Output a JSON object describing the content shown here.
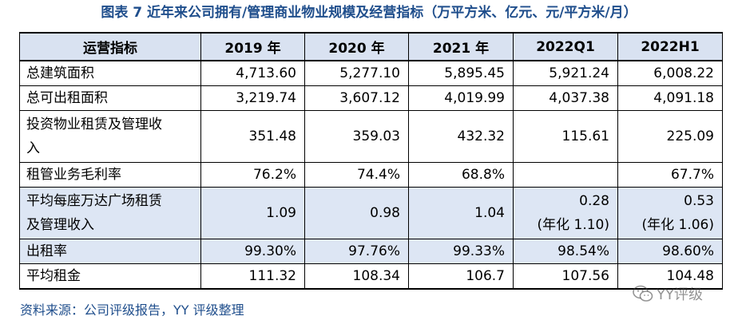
{
  "title": "图表 7 近年来公司拥有/管理商业物业规模及经营指标（万平方米、亿元、元/平方米/月）",
  "table": {
    "headers": [
      "运营指标",
      "2019 年",
      "2020 年",
      "2021 年",
      "2022Q1",
      "2022H1"
    ],
    "rows": [
      {
        "label": "总建筑面积",
        "cells": [
          "4,713.60",
          "5,277.10",
          "5,895.45",
          "5,921.24",
          "6,008.22"
        ]
      },
      {
        "label": "总可出租面积",
        "cells": [
          "3,219.74",
          "3,607.12",
          "4,019.99",
          "4,037.38",
          "4,091.18"
        ]
      },
      {
        "label_line1": "投资物业租赁及管理收",
        "label_line2": "入",
        "cells": [
          "351.48",
          "359.03",
          "432.32",
          "115.61",
          "225.09"
        ]
      },
      {
        "label": "租管业务毛利率",
        "cells": [
          "76.2%",
          "74.4%",
          "68.8%",
          "",
          "67.7%"
        ]
      },
      {
        "label_line1": "平均每座万达广场租赁",
        "label_line2": "及管理收入",
        "cells": [
          "1.09",
          "0.98",
          "1.04"
        ],
        "q1_line1": "0.28",
        "q1_line2": "(年化 1.10)",
        "h1_line1": "0.53",
        "h1_line2": "(年化 1.06)"
      },
      {
        "label": "出租率",
        "cells": [
          "99.30%",
          "97.76%",
          "99.33%",
          "98.54%",
          "98.60%"
        ]
      },
      {
        "label": "平均租金",
        "cells": [
          "111.32",
          "108.34",
          "106.7",
          "107.56",
          "104.48"
        ]
      }
    ]
  },
  "source": "资料来源：公司评级报告，YY 评级整理",
  "watermark": "YY评级",
  "colors": {
    "title": "#1f4e8c",
    "header_bg": "#d9e2f1",
    "highlight_bg": "#dde6f4"
  }
}
